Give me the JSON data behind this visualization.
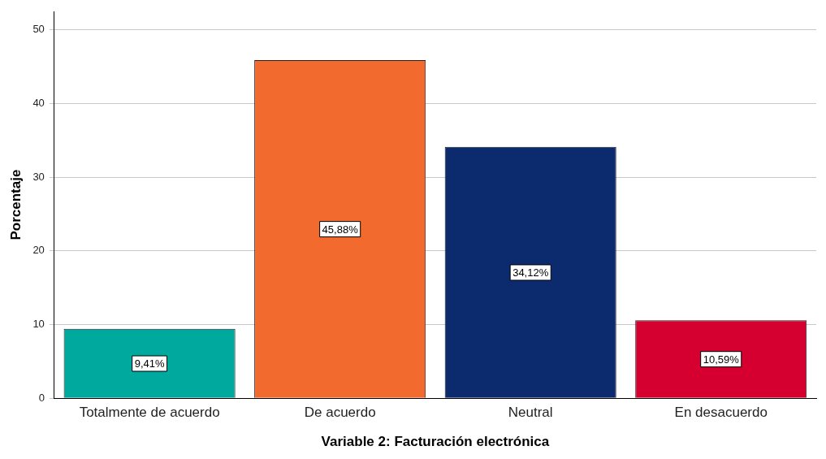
{
  "chart_data": {
    "type": "bar",
    "xlabel": "Variable 2: Facturación electrónica",
    "ylabel": "Porcentaje",
    "categories": [
      "Totalmente de acuerdo",
      "De acuerdo",
      "Neutral",
      "En desacuerdo"
    ],
    "values": [
      9.41,
      45.88,
      34.12,
      10.59
    ],
    "colors": [
      "#00a99d",
      "#f26a2e",
      "#0c2a6e",
      "#d5002f"
    ],
    "value_labels": [
      "9,41%",
      "45,88%",
      "34,12%",
      "10,59%"
    ],
    "ylim": [
      0,
      52.5
    ],
    "yticks": [
      0,
      10,
      20,
      30,
      40,
      50
    ],
    "grid": "y"
  }
}
